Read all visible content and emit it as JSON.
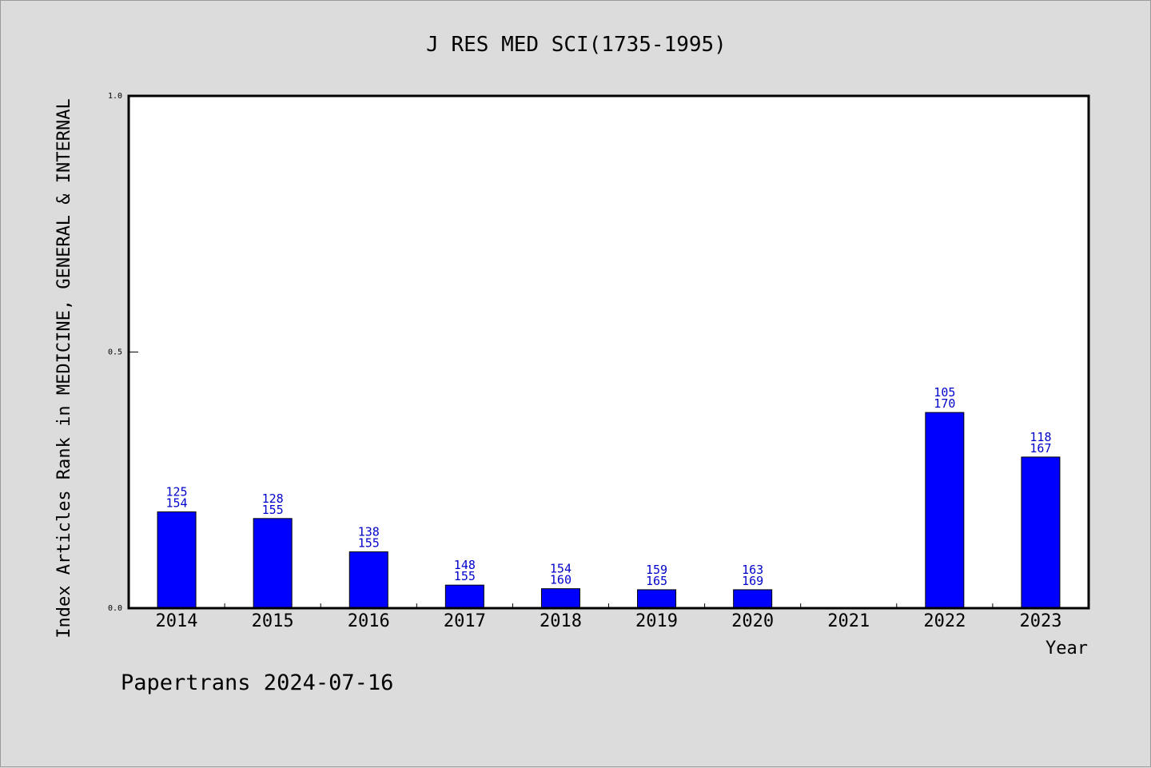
{
  "chart_data": {
    "type": "bar",
    "title": "J RES MED SCI(1735-1995)",
    "xlabel": "Year",
    "ylabel": "Index Articles Rank in MEDICINE, GENERAL & INTERNAL",
    "ylim": [
      0,
      1.0
    ],
    "yticks": [
      "0.0",
      "0.5",
      "1.0"
    ],
    "categories": [
      "2014",
      "2015",
      "2016",
      "2017",
      "2018",
      "2019",
      "2020",
      "2021",
      "2022",
      "2023"
    ],
    "series": [
      {
        "values": [
          0.188,
          0.175,
          0.11,
          0.045,
          0.038,
          0.036,
          0.036,
          null,
          0.382,
          0.295
        ]
      }
    ],
    "data_labels": [
      [
        "125",
        "154"
      ],
      [
        "128",
        "155"
      ],
      [
        "138",
        "155"
      ],
      [
        "148",
        "155"
      ],
      [
        "154",
        "160"
      ],
      [
        "159",
        "165"
      ],
      [
        "163",
        "169"
      ],
      null,
      [
        "105",
        "170"
      ],
      [
        "118",
        "167"
      ]
    ],
    "bar_color": "#0000ff",
    "label_color": "#0000cc",
    "grid": false,
    "legend": "none"
  },
  "footer": "Papertrans 2024-07-16"
}
